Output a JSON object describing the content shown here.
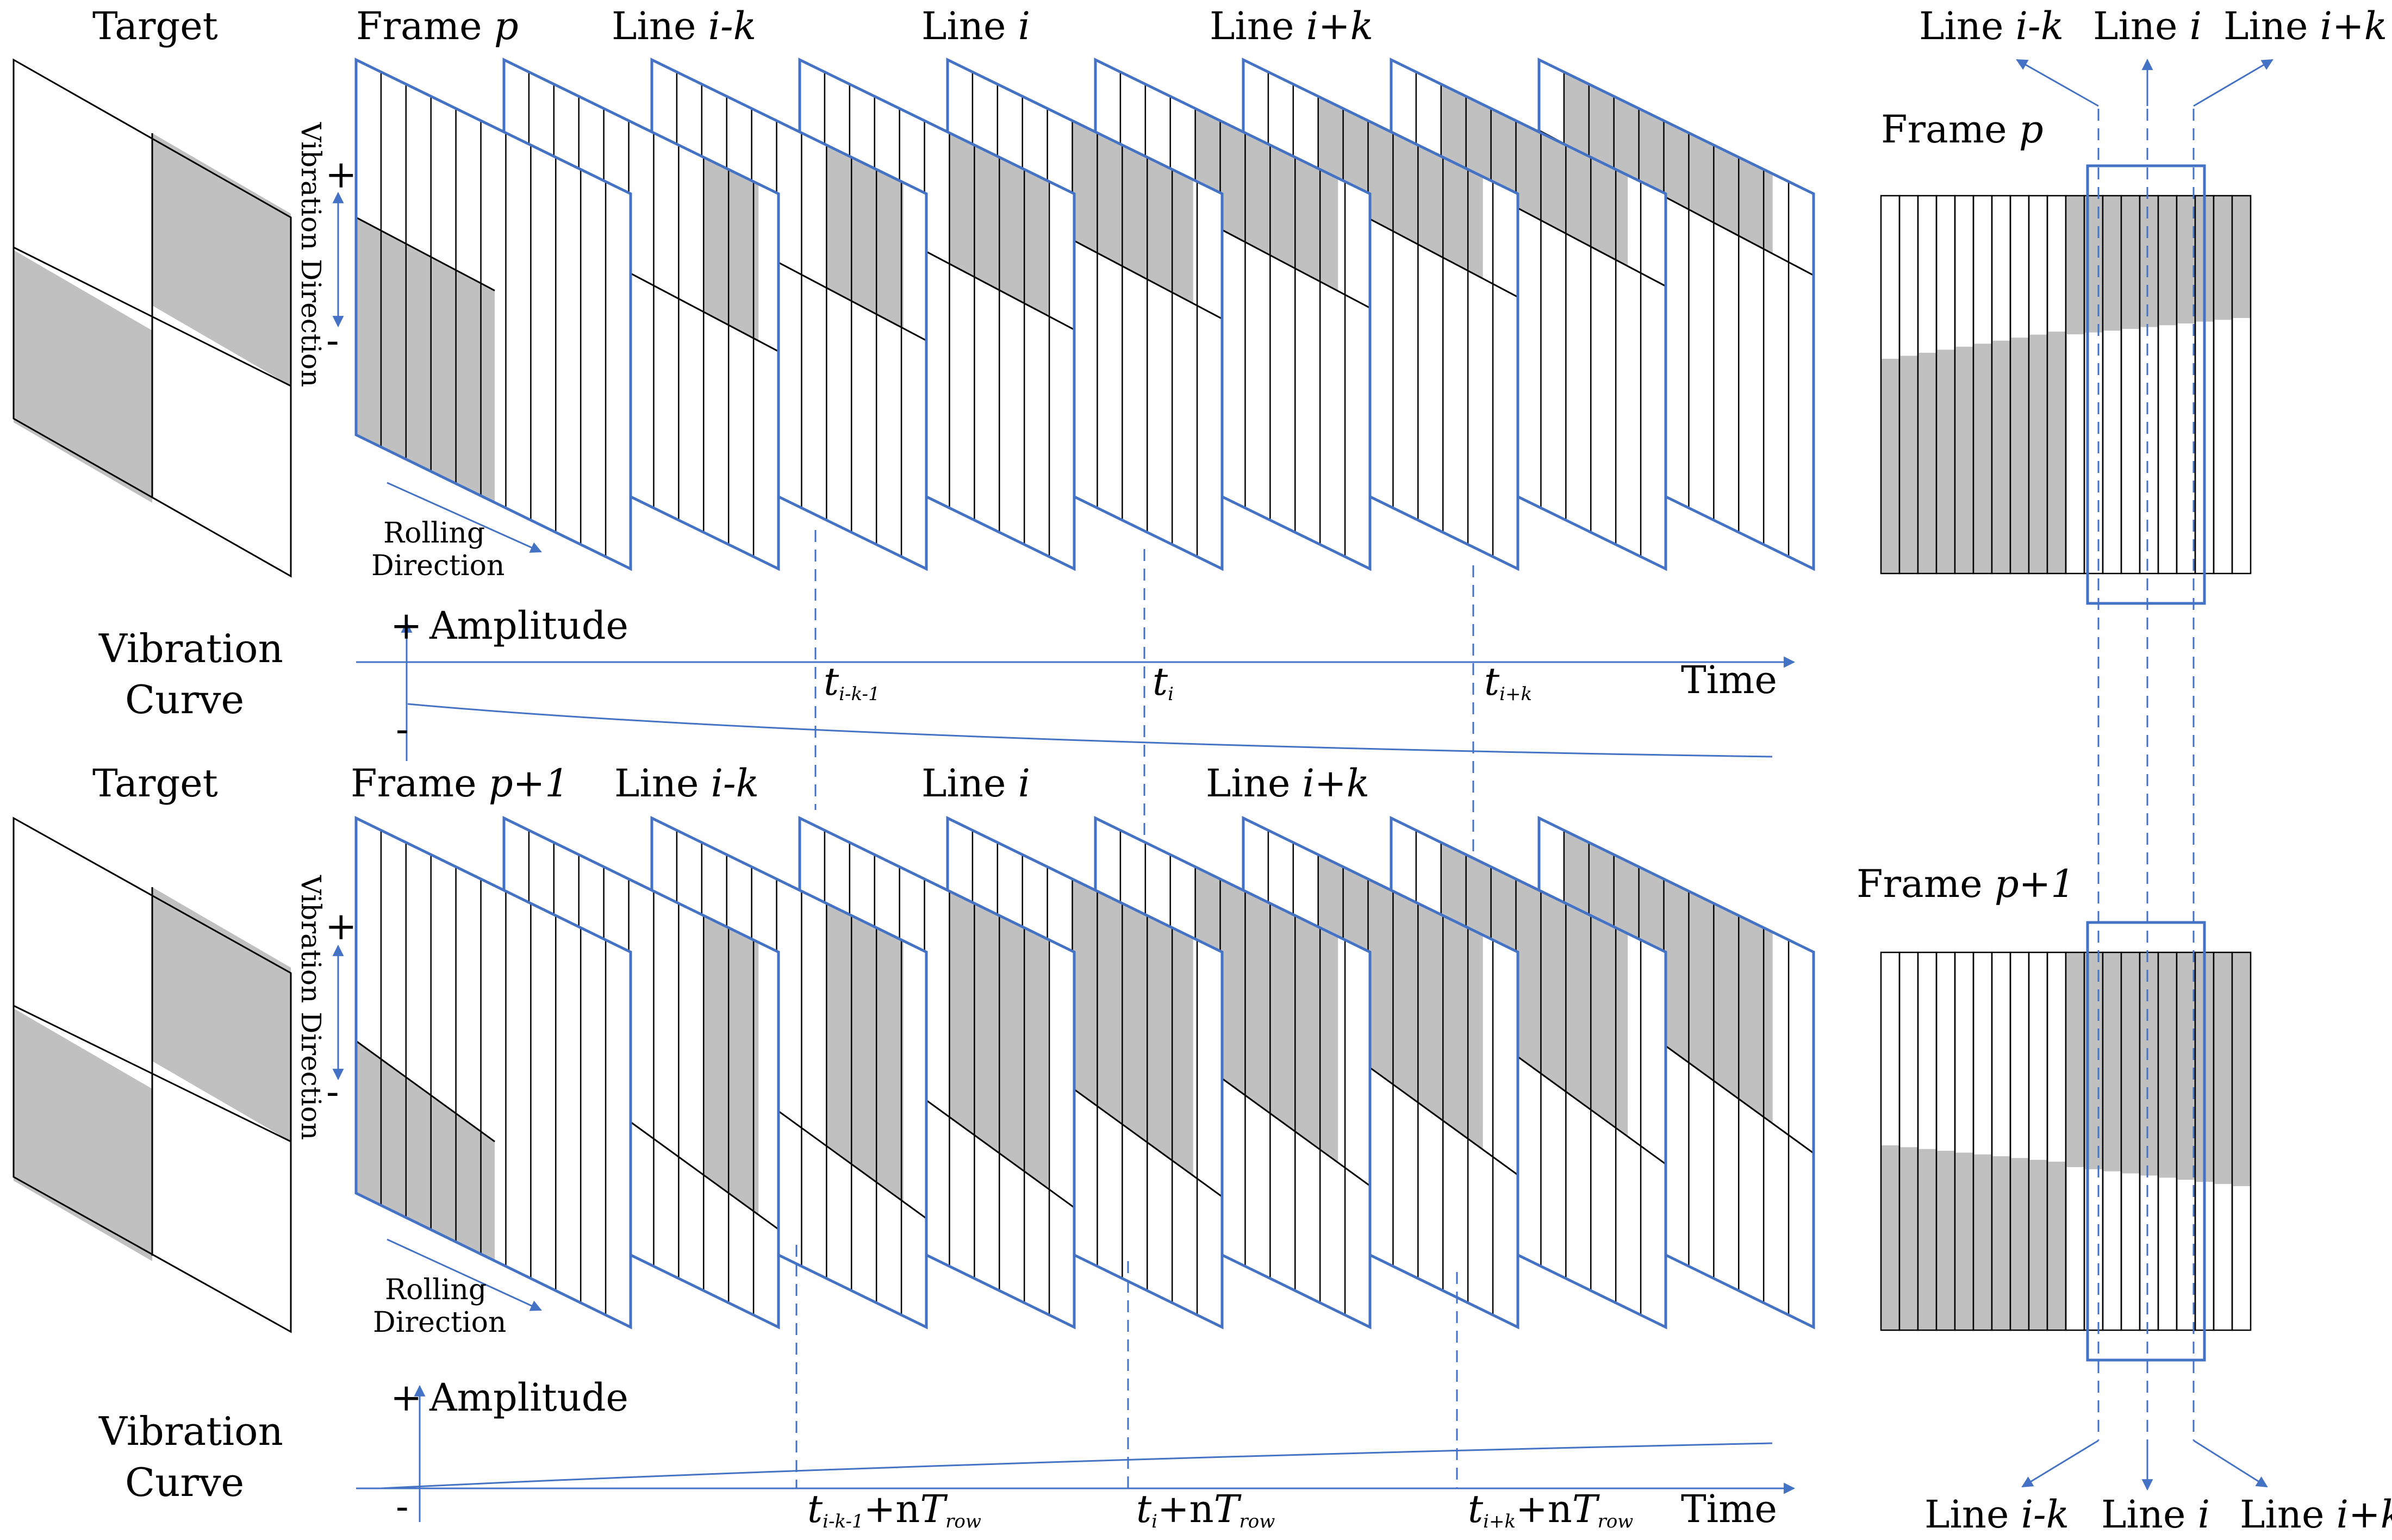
{
  "colors": {
    "accent": "#4472c4",
    "gray": "#c0c0c0",
    "line": "#000000"
  },
  "top": {
    "target_label": "Target",
    "frame_label": "Frame",
    "frame_var": "p",
    "line_prefix": "Line",
    "line_ik": "i-k",
    "line_i": "i",
    "line_ipk": "i+k",
    "vibration_direction": "Vibration Direction",
    "plus": "+",
    "minus": "-",
    "rolling": "Rolling",
    "direction": "Direction",
    "vibration": "Vibration",
    "curve": "Curve",
    "amplitude": "Amplitude",
    "time": "Time",
    "t1_main": "t",
    "t1_sub": "i-k-1",
    "t2_main": "t",
    "t2_sub": "i",
    "t3_main": "t",
    "t3_sub": "i+k"
  },
  "bottom": {
    "target_label": "Target",
    "frame_label": "Frame",
    "frame_var": "p+1",
    "line_prefix": "Line",
    "line_ik": "i-k",
    "line_i": "i",
    "line_ipk": "i+k",
    "vibration_direction": "Vibration Direction",
    "plus": "+",
    "minus": "-",
    "rolling": "Rolling",
    "direction": "Direction",
    "vibration": "Vibration",
    "curve": "Curve",
    "amplitude": "Amplitude",
    "time": "Time",
    "t1_main": "t",
    "t1_sub": "i-k-1",
    "t2_main": "t",
    "t2_sub": "i",
    "t3_main": "t",
    "t3_sub": "i+k",
    "nT_plus": "+n",
    "nT_T": "T",
    "nT_sub": "row"
  },
  "right": {
    "line_prefix": "Line",
    "line_ik": "i-k",
    "line_i": "i",
    "line_ipk": "i+k",
    "frame_label": "Frame",
    "frame_p": "p",
    "frame_p1": "p+1"
  }
}
